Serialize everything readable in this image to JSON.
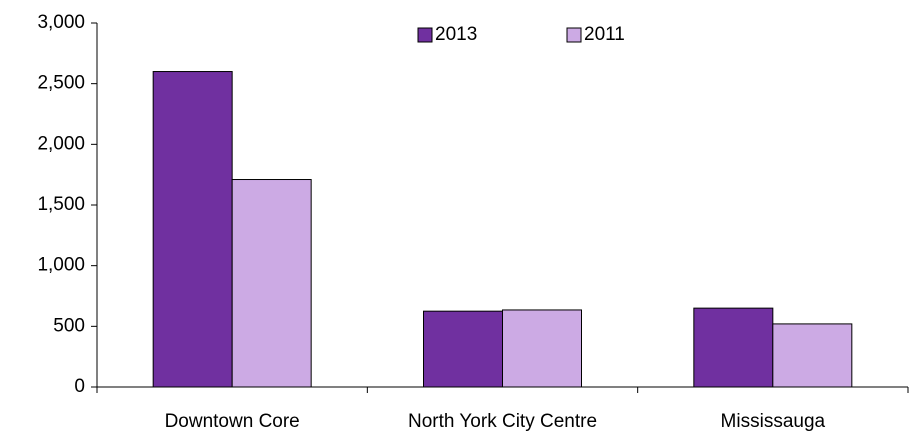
{
  "chart_data": {
    "type": "bar",
    "categories": [
      "Downtown Core",
      "North York City Centre",
      "Mississauga"
    ],
    "series": [
      {
        "name": "2013",
        "color": "#7030a0",
        "values": [
          2600,
          625,
          650
        ]
      },
      {
        "name": "2011",
        "color": "#ccaae4",
        "values": [
          1710,
          635,
          520
        ]
      }
    ],
    "ylim": [
      0,
      3000
    ],
    "yticks": [
      0,
      500,
      {
        "value": 1000,
        "label": "1,000"
      },
      {
        "value": 1500,
        "label": "1,500"
      },
      {
        "value": 2000,
        "label": "2,000"
      },
      {
        "value": 2500,
        "label": "2,500"
      },
      {
        "value": 3000,
        "label": "3,000"
      }
    ],
    "grid": false,
    "legend": "top-right"
  }
}
